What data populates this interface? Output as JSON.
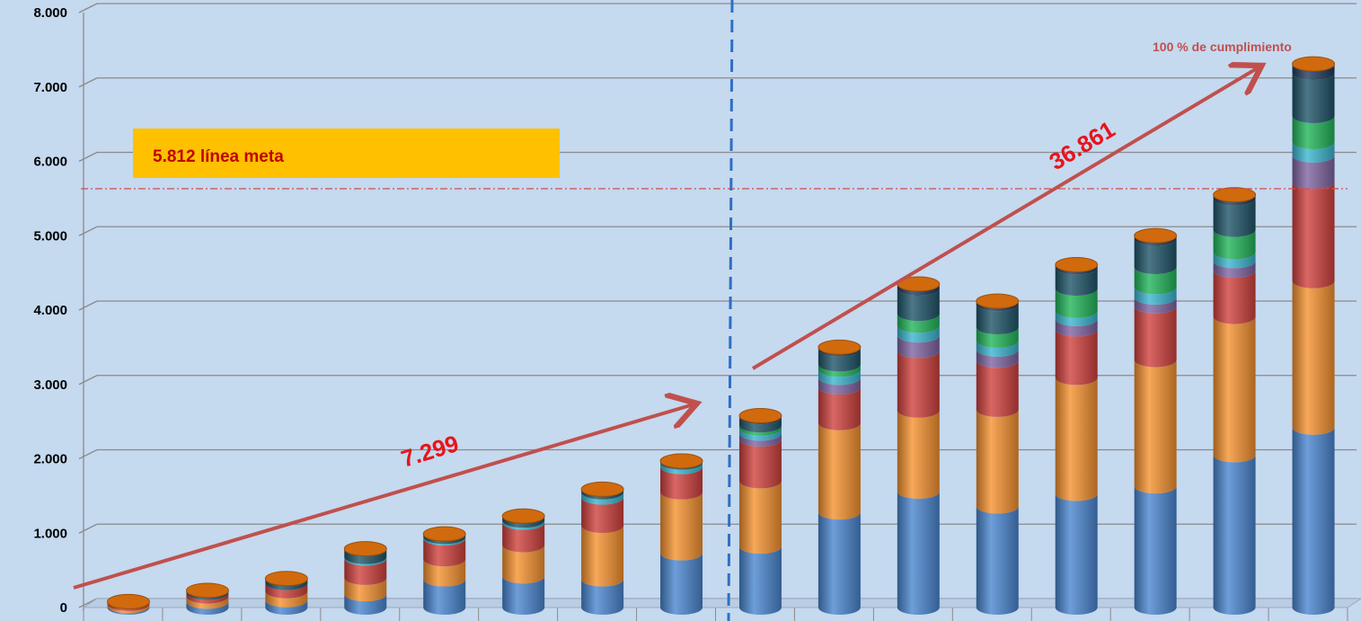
{
  "chart_data": {
    "type": "bar",
    "stacked": true,
    "style": "3d-cylinder",
    "ylim": [
      0,
      8000
    ],
    "yticks": [
      "0",
      "1.000",
      "2.000",
      "3.000",
      "4.000",
      "5.000",
      "6.000",
      "7.000",
      "8.000"
    ],
    "yticks_values": [
      0,
      1000,
      2000,
      3000,
      4000,
      5000,
      6000,
      7000,
      8000
    ],
    "grid": true,
    "series": [
      {
        "color": "#4a86d0",
        "values": [
          20,
          80,
          100,
          180,
          380,
          420,
          380,
          730,
          820,
          1280,
          1560,
          1360,
          1530,
          1630,
          2050,
          2420
        ]
      },
      {
        "color": "#f5922f",
        "values": [
          30,
          70,
          120,
          220,
          270,
          420,
          720,
          820,
          880,
          1200,
          1090,
          1300,
          1560,
          1700,
          1860,
          1970
        ]
      },
      {
        "color": "#d0413d",
        "values": [
          30,
          50,
          110,
          260,
          280,
          300,
          380,
          340,
          560,
          480,
          800,
          660,
          650,
          720,
          620,
          1330
        ]
      },
      {
        "color": "#8064a2",
        "values": [
          0,
          0,
          0,
          0,
          0,
          0,
          0,
          0,
          80,
          130,
          210,
          150,
          140,
          120,
          130,
          360
        ]
      },
      {
        "color": "#3bb5cf",
        "values": [
          0,
          0,
          0,
          20,
          20,
          30,
          70,
          60,
          70,
          110,
          130,
          120,
          110,
          140,
          120,
          180
        ]
      },
      {
        "color": "#22b55a",
        "values": [
          0,
          0,
          0,
          0,
          0,
          0,
          0,
          0,
          40,
          70,
          160,
          180,
          300,
          270,
          300,
          350
        ]
      },
      {
        "color": "#1f5568",
        "values": [
          0,
          30,
          60,
          110,
          40,
          60,
          40,
          20,
          110,
          200,
          340,
          310,
          280,
          380,
          420,
          580
        ]
      },
      {
        "color": "#1f3b5c",
        "values": [
          0,
          0,
          0,
          0,
          0,
          0,
          0,
          0,
          20,
          30,
          60,
          40,
          40,
          40,
          50,
          120
        ]
      }
    ],
    "top_cap_color": "#d06a0d",
    "annotations": [
      {
        "text": "5.812  línea meta",
        "value": 5812
      },
      {
        "text": "7.299"
      },
      {
        "text": "36.861"
      },
      {
        "text": "100 % de cumplimiento"
      }
    ]
  }
}
